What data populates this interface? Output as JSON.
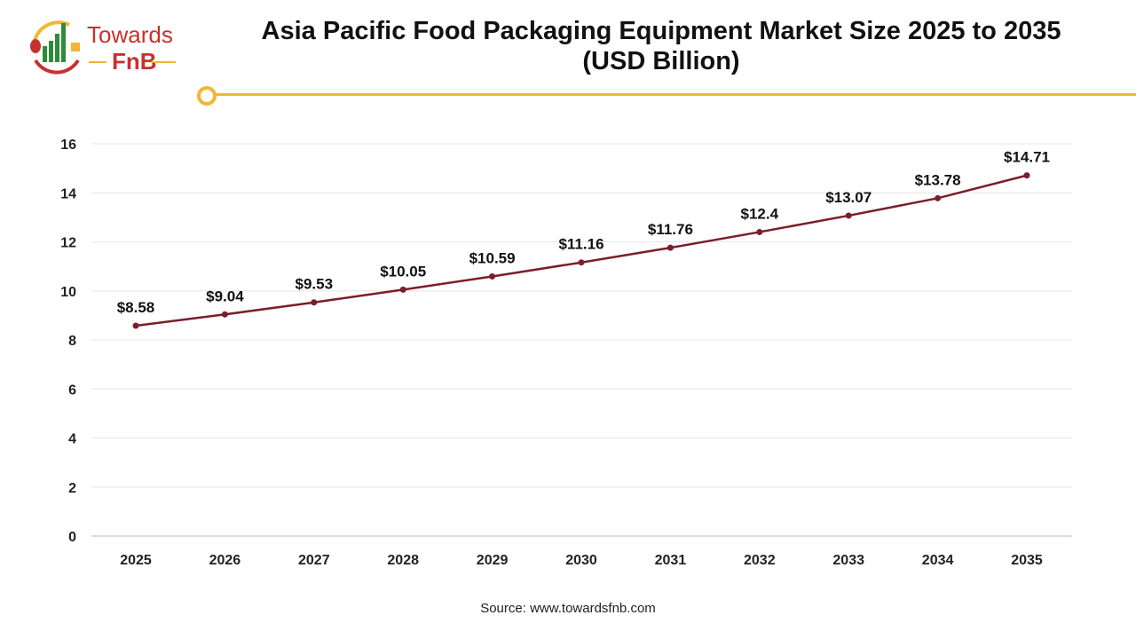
{
  "logo": {
    "line1": "Towards",
    "line2": "FnB"
  },
  "title_line1": "Asia Pacific Food Packaging Equipment Market Size 2025 to 2035",
  "title_line2": "(USD Billion)",
  "source": "Source: www.towardsfnb.com",
  "chart_data": {
    "type": "line",
    "title": "Asia Pacific Food Packaging Equipment Market Size 2025 to 2035 (USD Billion)",
    "categories": [
      "2025",
      "2026",
      "2027",
      "2028",
      "2029",
      "2030",
      "2031",
      "2032",
      "2033",
      "2034",
      "2035"
    ],
    "values": [
      8.58,
      9.04,
      9.53,
      10.05,
      10.59,
      11.16,
      11.76,
      12.4,
      13.07,
      13.78,
      14.71
    ],
    "labels": [
      "$8.58",
      "$9.04",
      "$9.53",
      "$10.05",
      "$10.59",
      "$11.16",
      "$11.76",
      "$12.4",
      "$13.07",
      "$13.78",
      "$14.71"
    ],
    "ylim": [
      0,
      16
    ],
    "yticks": [
      0,
      2,
      4,
      6,
      8,
      10,
      12,
      14,
      16
    ],
    "grid": true,
    "line_color": "#7b1e2b",
    "accent_color": "#f2b632"
  }
}
